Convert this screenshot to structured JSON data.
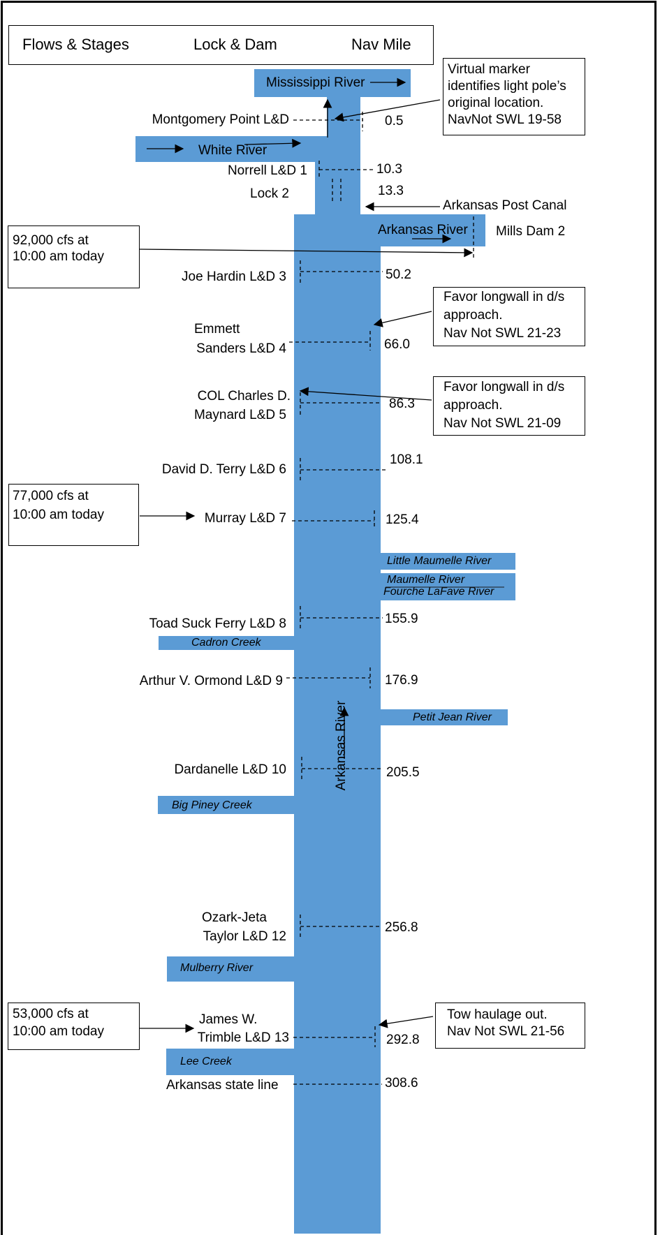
{
  "header": {
    "flows": "Flows & Stages",
    "lock": "Lock & Dam",
    "mile": "Nav Mile"
  },
  "rivers": {
    "mississippi": "Mississippi River",
    "white": "White River",
    "arkansas_main": "Arkansas River",
    "arkansas_vertical": "Arkansas River",
    "little_maumelle": "Little Maumelle River",
    "maumelle": "Maumelle River",
    "fourche": "Fourche LaFave River",
    "cadron": "Cadron Creek",
    "petit_jean": "Petit Jean River",
    "big_piney": "Big Piney Creek",
    "mulberry": "Mulberry River",
    "lee": "Lee Creek"
  },
  "locks": {
    "montgomery": "Montgomery Point L&D",
    "norrell": "Norrell L&D 1",
    "lock2": "Lock 2",
    "joe_hardin": "Joe Hardin L&D 3",
    "emmett_1": "Emmett",
    "emmett_2": "Sanders L&D 4",
    "maynard_1": "COL Charles D.",
    "maynard_2": "Maynard L&D 5",
    "terry": "David D. Terry L&D 6",
    "murray": "Murray L&D 7",
    "toad_suck": "Toad Suck Ferry L&D 8",
    "ormond": "Arthur V. Ormond L&D 9",
    "dardanelle": "Dardanelle L&D 10",
    "ozark_1": "Ozark-Jeta",
    "ozark_2": "Taylor L&D 12",
    "trimble_1": "James W.",
    "trimble_2": "Trimble L&D 13",
    "state_line": "Arkansas state line"
  },
  "structures": {
    "post_canal": "Arkansas Post Canal",
    "mills_dam": "Mills Dam 2"
  },
  "miles": {
    "montgomery": "0.5",
    "norrell": "10.3",
    "lock2": "13.3",
    "joe_hardin": "50.2",
    "emmett": "66.0",
    "maynard": "86.3",
    "terry": "108.1",
    "murray": "125.4",
    "toad_suck": "155.9",
    "ormond": "176.9",
    "dardanelle": "205.5",
    "ozark": "256.8",
    "trimble": "292.8",
    "state_line": "308.6"
  },
  "flows": {
    "f1_line1": "92,000 cfs at",
    "f1_line2": "10:00 am today",
    "f2_line1": "77,000 cfs at",
    "f2_line2": "10:00 am today",
    "f3_line1": "53,000 cfs at",
    "f3_line2": "10:00 am today"
  },
  "notices": {
    "n1_l1": "Virtual marker",
    "n1_l2": "identifies light pole’s",
    "n1_l3": "original location.",
    "n1_l4": "NavNot SWL 19-58",
    "n2_l1": "Favor longwall in d/s",
    "n2_l2": "approach.",
    "n2_l3": "Nav Not SWL 21-23",
    "n3_l1": "Favor longwall in d/s",
    "n3_l2": "approach.",
    "n3_l3": "Nav Not SWL 21-09",
    "n4_l1": "Tow haulage out.",
    "n4_l2": "Nav Not SWL 21-56"
  },
  "colors": {
    "river": "#5b9bd5",
    "line": "#000000"
  }
}
